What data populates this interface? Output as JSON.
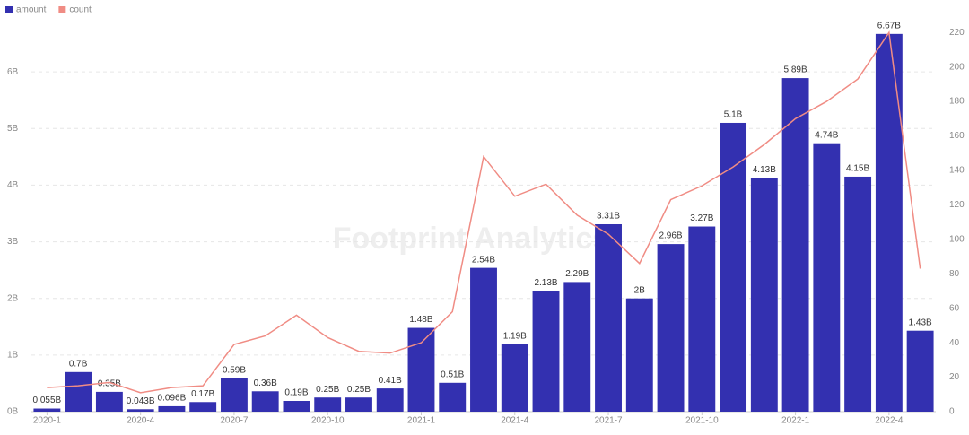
{
  "chart_data": {
    "type": "bar_line",
    "watermark": "Footprint Analytics",
    "categories": [
      "2020-1",
      null,
      null,
      "2020-4",
      null,
      null,
      "2020-7",
      null,
      null,
      "2020-10",
      null,
      null,
      "2021-1",
      null,
      null,
      "2021-4",
      null,
      null,
      "2021-7",
      null,
      null,
      "2021-10",
      null,
      null,
      "2022-1",
      null,
      null,
      "2022-4",
      null
    ],
    "series": [
      {
        "name": "amount",
        "type": "bar",
        "color": "#3330b0",
        "values": [
          0.055,
          0.7,
          0.35,
          0.043,
          0.096,
          0.17,
          0.59,
          0.36,
          0.19,
          0.25,
          0.25,
          0.41,
          1.48,
          0.51,
          2.54,
          1.19,
          2.13,
          2.29,
          3.31,
          2,
          2.96,
          3.27,
          5.1,
          4.13,
          5.89,
          4.74,
          4.15,
          6.67,
          1.43
        ],
        "value_labels": [
          "0.055B",
          "0.7B",
          "0.35B",
          "0.043B",
          "0.096B",
          "0.17B",
          "0.59B",
          "0.36B",
          "0.19B",
          "0.25B",
          "0.25B",
          "0.41B",
          "1.48B",
          "0.51B",
          "2.54B",
          "1.19B",
          "2.13B",
          "2.29B",
          "3.31B",
          "2B",
          "2.96B",
          "3.27B",
          "5.1B",
          "4.13B",
          "5.89B",
          "4.74B",
          "4.15B",
          "6.67B",
          "1.43B"
        ]
      },
      {
        "name": "count",
        "type": "line",
        "axis": "y2",
        "color": "#f08c84",
        "values": [
          14,
          15,
          17,
          11,
          14,
          15,
          39,
          44,
          56,
          43,
          35,
          34,
          40,
          58,
          148,
          125,
          132,
          114,
          103,
          86,
          123,
          131,
          142,
          155,
          170,
          180,
          193,
          220,
          83
        ]
      }
    ],
    "ylim": [
      0,
      7
    ],
    "yticks": [
      {
        "value": 0,
        "label": "0B"
      },
      {
        "value": 1,
        "label": "1B"
      },
      {
        "value": 2,
        "label": "2B"
      },
      {
        "value": 3,
        "label": "3B"
      },
      {
        "value": 4,
        "label": "4B"
      },
      {
        "value": 5,
        "label": "5B"
      },
      {
        "value": 6,
        "label": "6B"
      }
    ],
    "y2lim": [
      0,
      230
    ],
    "y2ticks": [
      0,
      20,
      40,
      60,
      80,
      100,
      120,
      140,
      160,
      180,
      200,
      220
    ],
    "grid": true,
    "legend": "top-left"
  }
}
